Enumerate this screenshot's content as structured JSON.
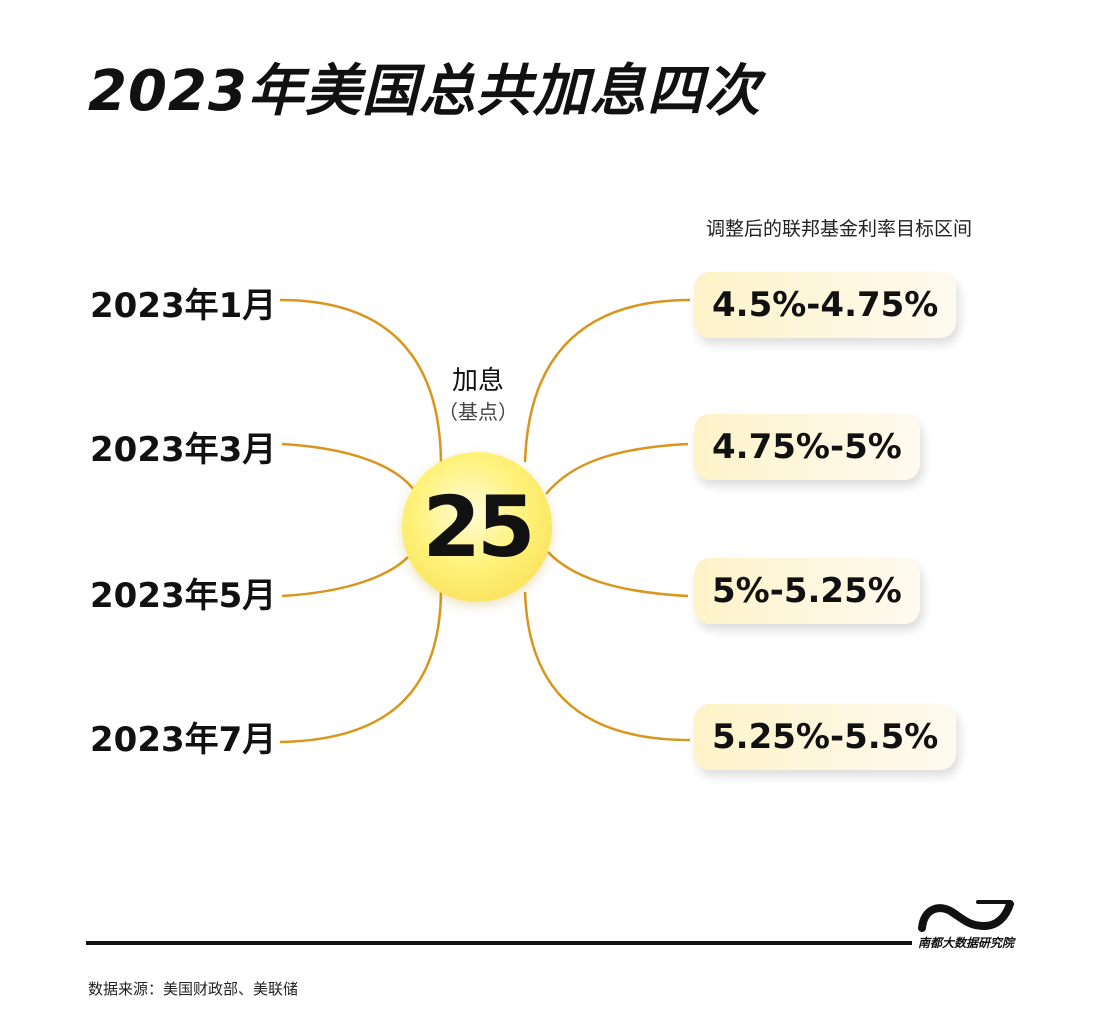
{
  "title": "2023年美国总共加息四次",
  "months": [
    {
      "label": "2023年1月"
    },
    {
      "label": "2023年3月"
    },
    {
      "label": "2023年5月"
    },
    {
      "label": "2023年7月"
    }
  ],
  "center": {
    "label": "加息",
    "sub_label": "（基点）",
    "value": "25"
  },
  "rates": {
    "header": "调整后的联邦基金利率目标区间",
    "items": [
      {
        "label": "4.5%-4.75%"
      },
      {
        "label": "4.75%-5%"
      },
      {
        "label": "5%-5.25%"
      },
      {
        "label": "5.25%-5.5%"
      }
    ]
  },
  "footer": {
    "source": "数据来源：美国财政部、美联储",
    "logo_text": "南都大数据研究院"
  },
  "colors": {
    "connector": "#d9951c",
    "circle": "#fff27a",
    "pill": "#fdf3c9"
  }
}
